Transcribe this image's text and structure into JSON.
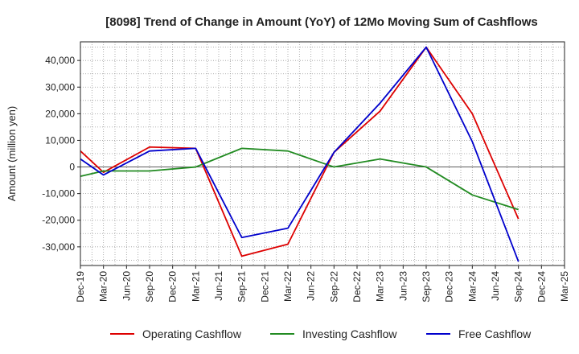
{
  "chart_data": {
    "type": "line",
    "title": "[8098]  Trend of Change in Amount (YoY) of 12Mo Moving Sum of Cashflows",
    "xlabel": "",
    "ylabel": "Amount (million yen)",
    "ylim": [
      -37000,
      47000
    ],
    "yticks": [
      -30000,
      -20000,
      -10000,
      0,
      10000,
      20000,
      30000,
      40000
    ],
    "ytick_labels": [
      "-30,000",
      "-20,000",
      "-10,000",
      "0",
      "10,000",
      "20,000",
      "30,000",
      "40,000"
    ],
    "grid": true,
    "legend_position": "bottom",
    "categories": [
      "Dec-19",
      "Mar-20",
      "Jun-20",
      "Sep-20",
      "Dec-20",
      "Mar-21",
      "Jun-21",
      "Sep-21",
      "Dec-21",
      "Mar-22",
      "Jun-22",
      "Sep-22",
      "Dec-22",
      "Mar-23",
      "Jun-23",
      "Sep-23",
      "Dec-23",
      "Mar-24",
      "Jun-24",
      "Sep-24",
      "Dec-24",
      "Mar-25"
    ],
    "series": [
      {
        "name": "Operating Cashflow",
        "color": "#dd0000",
        "values": [
          6000,
          -2000,
          null,
          7500,
          null,
          7000,
          null,
          -33500,
          null,
          -29000,
          null,
          5500,
          null,
          21000,
          null,
          45000,
          null,
          20000,
          null,
          -19500,
          null,
          null
        ]
      },
      {
        "name": "Investing Cashflow",
        "color": "#228b22",
        "values": [
          -3500,
          -1500,
          null,
          -1500,
          null,
          0,
          null,
          7000,
          null,
          6000,
          null,
          0,
          null,
          3000,
          null,
          0,
          null,
          -10500,
          null,
          -16000,
          null,
          null
        ]
      },
      {
        "name": "Free Cashflow",
        "color": "#0000cc",
        "values": [
          3000,
          -3000,
          null,
          6000,
          null,
          7000,
          null,
          -26500,
          null,
          -23000,
          null,
          5500,
          null,
          24000,
          null,
          45000,
          null,
          9500,
          null,
          -35500,
          null,
          null
        ]
      }
    ]
  }
}
